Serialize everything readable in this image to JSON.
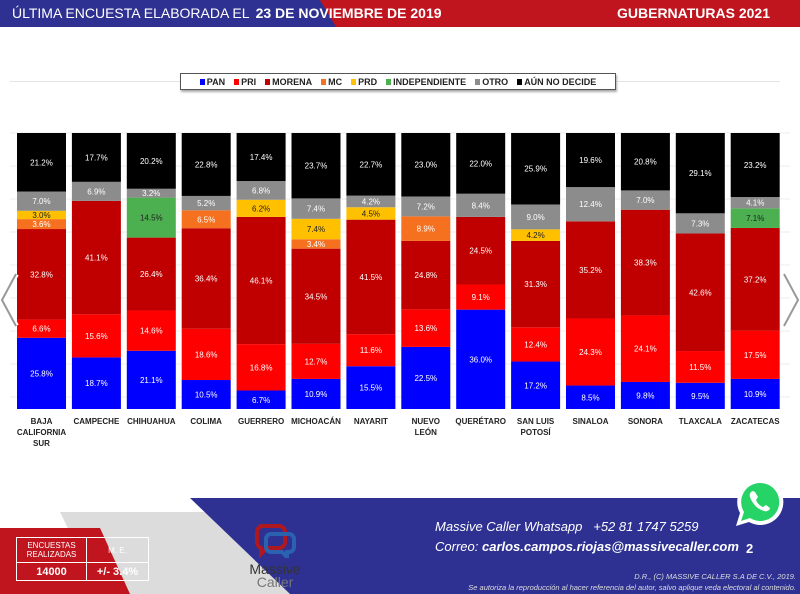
{
  "header": {
    "left_prefix": "ÚLTIMA ENCUESTA ELABORADA EL",
    "date": "23 DE NOVIEMBRE DE 2019",
    "title": "GUBERNATURAS 2021"
  },
  "chart_data": {
    "type": "bar",
    "stacked": true,
    "title": "GUBERNATURAS 2021",
    "ylabel": "",
    "xlabel": "",
    "ylim": [
      0,
      100
    ],
    "legend_position": "top-center",
    "categories": [
      "BAJA CALIFORNIA SUR",
      "CAMPECHE",
      "CHIHUAHUA",
      "COLIMA",
      "GUERRERO",
      "MICHOACÁN",
      "NAYARIT",
      "NUEVO LEÓN",
      "QUERÉTARO",
      "SAN LUIS POTOSÍ",
      "SINALOA",
      "SONORA",
      "TLAXCALA",
      "ZACATECAS"
    ],
    "category_lines": [
      [
        "BAJA",
        "CALIFORNIA",
        "SUR"
      ],
      [
        "CAMPECHE"
      ],
      [
        "CHIHUAHUA"
      ],
      [
        "COLIMA"
      ],
      [
        "GUERRERO"
      ],
      [
        "MICHOACÁN"
      ],
      [
        "NAYARIT"
      ],
      [
        "NUEVO",
        "LEÓN"
      ],
      [
        "QUERÉTARO"
      ],
      [
        "SAN LUIS",
        "POTOSÍ"
      ],
      [
        "SINALOA"
      ],
      [
        "SONORA"
      ],
      [
        "TLAXCALA"
      ],
      [
        "ZACATECAS"
      ]
    ],
    "series": [
      {
        "name": "PAN",
        "color": "#0000ff",
        "values": [
          25.8,
          18.7,
          21.1,
          10.5,
          6.7,
          10.9,
          15.5,
          22.5,
          36.0,
          17.2,
          8.5,
          9.8,
          9.5,
          10.9
        ]
      },
      {
        "name": "PRI",
        "color": "#ff0000",
        "values": [
          6.6,
          15.6,
          14.6,
          18.6,
          16.8,
          12.7,
          11.6,
          13.6,
          9.1,
          12.4,
          24.3,
          24.1,
          11.5,
          17.5
        ]
      },
      {
        "name": "MORENA",
        "color": "#c00000",
        "values": [
          32.8,
          41.1,
          26.4,
          36.4,
          46.1,
          34.5,
          41.5,
          24.8,
          24.5,
          31.3,
          35.2,
          38.3,
          42.6,
          37.2
        ]
      },
      {
        "name": "MC",
        "color": "#f5701f",
        "values": [
          3.6,
          null,
          null,
          6.5,
          null,
          3.4,
          null,
          8.9,
          null,
          null,
          null,
          null,
          null,
          null
        ]
      },
      {
        "name": "PRD",
        "color": "#ffc000",
        "values": [
          3.0,
          null,
          null,
          null,
          6.2,
          7.4,
          4.5,
          null,
          null,
          4.2,
          null,
          null,
          null,
          null
        ]
      },
      {
        "name": "INDEPENDIENTE",
        "color": "#4caf50",
        "values": [
          null,
          null,
          14.5,
          null,
          null,
          null,
          null,
          null,
          null,
          null,
          null,
          null,
          null,
          7.1
        ]
      },
      {
        "name": "OTRO",
        "color": "#8c8c8c",
        "values": [
          7.0,
          6.9,
          3.2,
          5.2,
          6.8,
          7.4,
          4.2,
          7.2,
          8.4,
          9.0,
          12.4,
          7.0,
          7.3,
          4.1
        ]
      },
      {
        "name": "AÚN NO DECIDE",
        "color": "#000000",
        "values": [
          21.2,
          17.7,
          20.2,
          22.8,
          17.4,
          23.7,
          22.7,
          23.0,
          22.0,
          25.9,
          19.6,
          20.8,
          29.1,
          23.2
        ]
      }
    ]
  },
  "footer": {
    "table_headers": [
      "ENCUESTAS REALIZADAS",
      "M. E."
    ],
    "table_values": [
      "14000",
      "+/- 3.4%"
    ],
    "logo_text": "Massive Caller",
    "logo_line1": "Massive",
    "logo_line2": "Caller",
    "whatsapp_label": "Massive Caller Whatsapp",
    "whatsapp_number": "+52  81 1747 5259",
    "email_label": "Correo:",
    "email": "carlos.campos.riojas@massivecaller.com",
    "page_number": "2",
    "copyright": "D.R., (C) MASSIVE CALLER S.A DE C.V., 2019.",
    "disclaimer": "Se autoriza la reproducción al hacer referencia del autor, salvo aplique veda electoral al contenido."
  }
}
